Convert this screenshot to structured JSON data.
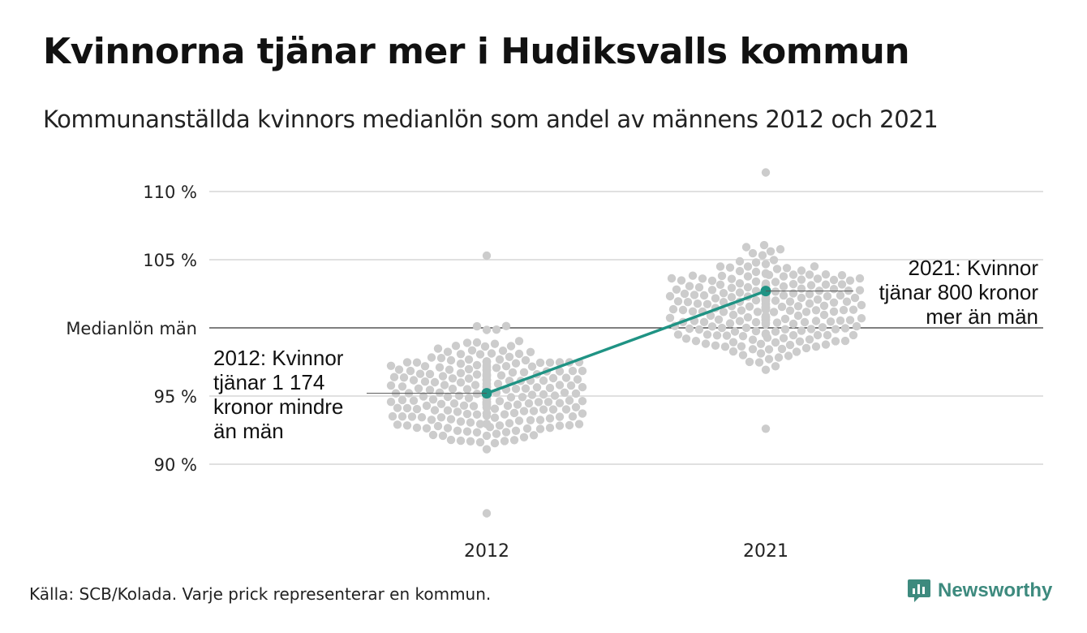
{
  "title": "Kvinnorna tjänar mer i Hudiksvalls kommun",
  "subtitle": "Kommunanställda kvinnors medianlön som andel av männens 2012 och 2021",
  "source": "Källa: SCB/Kolada. Varje prick representerar en kommun.",
  "brand": "Newsworthy",
  "colors": {
    "dots": "#cccccc",
    "highlight": "#1f9384",
    "gridline": "#e0e0e0",
    "baseline": "#333333",
    "brand": "#3d8a7e"
  },
  "chart_data": {
    "type": "scatter",
    "style": "beeswarm",
    "categories": [
      "2012",
      "2021"
    ],
    "ylim": [
      86,
      112
    ],
    "y_ticks": [
      {
        "value": 90,
        "label": "90 %"
      },
      {
        "value": 95,
        "label": "95 %"
      },
      {
        "value": 100,
        "label": "Medianlön män"
      },
      {
        "value": 105,
        "label": "105 %"
      },
      {
        "value": 110,
        "label": "110 %"
      }
    ],
    "baseline_value": 100,
    "highlight": {
      "points": [
        {
          "category": "2012",
          "value": 95.2
        },
        {
          "category": "2021",
          "value": 102.7
        }
      ]
    },
    "annotations": [
      {
        "category": "2012",
        "value": 95.2,
        "lines": [
          "2012: Kvinnor",
          "tjänar 1 174",
          "kronor mindre",
          "än män"
        ]
      },
      {
        "category": "2021",
        "value": 102.7,
        "lines": [
          "2021: Kvinnor",
          "tjänar 800 kronor",
          "mer än män"
        ]
      }
    ],
    "distributions": [
      {
        "category": "2012",
        "count": 290,
        "min": 86.4,
        "max": 105.3,
        "mode": 95.5,
        "spread": 2.6
      },
      {
        "category": "2021",
        "count": 290,
        "min": 92.6,
        "max": 111.4,
        "mode": 101.5,
        "spread": 2.6
      }
    ]
  }
}
